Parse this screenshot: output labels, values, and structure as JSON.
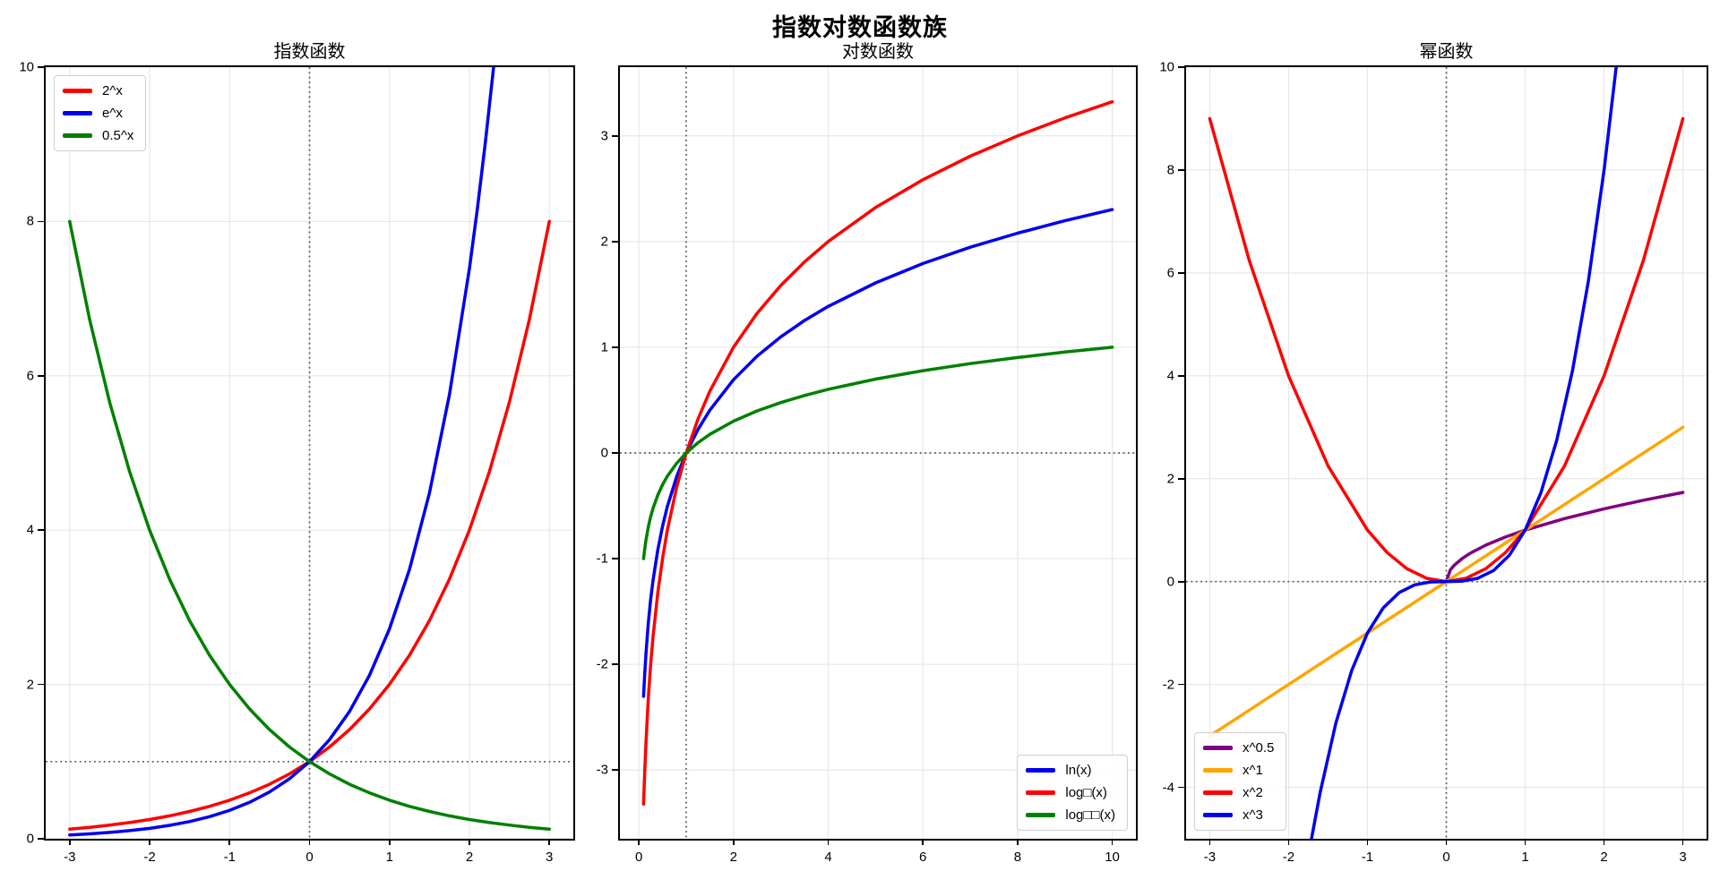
{
  "figure": {
    "title": "指数对数函数族",
    "background": "#ffffff"
  },
  "colors": {
    "red": "#ff0000",
    "blue": "#0000f0",
    "green": "#008000",
    "purple": "#800080",
    "orange": "#ffa500",
    "grid": "#e7e7e7",
    "spine": "#000000",
    "reference_line": "#555555",
    "legend_border": "#cfcfcf"
  },
  "chart_data": [
    {
      "id": "exp",
      "type": "line",
      "title": "指数函数",
      "xlim": [
        -3.3,
        3.3
      ],
      "ylim": [
        0,
        10
      ],
      "xticks": [
        -3,
        -2,
        -1,
        0,
        1,
        2,
        3
      ],
      "yticks": [
        0,
        2,
        4,
        6,
        8,
        10
      ],
      "grid": true,
      "ref_lines": {
        "vline_x": 0,
        "hline_y": 1
      },
      "legend": {
        "position": "upper-left"
      },
      "series": [
        {
          "name": "2^x",
          "color": "#ff0000",
          "points": [
            [
              -3,
              0.125
            ],
            [
              -2.75,
              0.149
            ],
            [
              -2.5,
              0.177
            ],
            [
              -2.25,
              0.21
            ],
            [
              -2,
              0.25
            ],
            [
              -1.75,
              0.297
            ],
            [
              -1.5,
              0.354
            ],
            [
              -1.25,
              0.42
            ],
            [
              -1,
              0.5
            ],
            [
              -0.75,
              0.595
            ],
            [
              -0.5,
              0.707
            ],
            [
              -0.25,
              0.841
            ],
            [
              0,
              1
            ],
            [
              0.25,
              1.189
            ],
            [
              0.5,
              1.414
            ],
            [
              0.75,
              1.682
            ],
            [
              1,
              2
            ],
            [
              1.25,
              2.378
            ],
            [
              1.5,
              2.828
            ],
            [
              1.75,
              3.364
            ],
            [
              2,
              4
            ],
            [
              2.25,
              4.757
            ],
            [
              2.5,
              5.657
            ],
            [
              2.75,
              6.727
            ],
            [
              3,
              8
            ]
          ]
        },
        {
          "name": "e^x",
          "color": "#0000f0",
          "points": [
            [
              -3,
              0.05
            ],
            [
              -2.75,
              0.064
            ],
            [
              -2.5,
              0.082
            ],
            [
              -2.25,
              0.105
            ],
            [
              -2,
              0.135
            ],
            [
              -1.75,
              0.174
            ],
            [
              -1.5,
              0.223
            ],
            [
              -1.25,
              0.287
            ],
            [
              -1,
              0.368
            ],
            [
              -0.75,
              0.472
            ],
            [
              -0.5,
              0.607
            ],
            [
              -0.25,
              0.779
            ],
            [
              0,
              1
            ],
            [
              0.25,
              1.284
            ],
            [
              0.5,
              1.649
            ],
            [
              0.75,
              2.117
            ],
            [
              1,
              2.718
            ],
            [
              1.25,
              3.49
            ],
            [
              1.5,
              4.482
            ],
            [
              1.75,
              5.755
            ],
            [
              2,
              7.389
            ],
            [
              2.1,
              8.166
            ],
            [
              2.2,
              9.025
            ],
            [
              2.303,
              10
            ]
          ]
        },
        {
          "name": "0.5^x",
          "color": "#008000",
          "points": [
            [
              -3,
              8
            ],
            [
              -2.75,
              6.727
            ],
            [
              -2.5,
              5.657
            ],
            [
              -2.25,
              4.757
            ],
            [
              -2,
              4
            ],
            [
              -1.75,
              3.364
            ],
            [
              -1.5,
              2.828
            ],
            [
              -1.25,
              2.378
            ],
            [
              -1,
              2
            ],
            [
              -0.75,
              1.682
            ],
            [
              -0.5,
              1.414
            ],
            [
              -0.25,
              1.189
            ],
            [
              0,
              1
            ],
            [
              0.25,
              0.841
            ],
            [
              0.5,
              0.707
            ],
            [
              0.75,
              0.595
            ],
            [
              1,
              0.5
            ],
            [
              1.25,
              0.42
            ],
            [
              1.5,
              0.354
            ],
            [
              1.75,
              0.297
            ],
            [
              2,
              0.25
            ],
            [
              2.25,
              0.21
            ],
            [
              2.5,
              0.177
            ],
            [
              2.75,
              0.149
            ],
            [
              3,
              0.125
            ]
          ]
        }
      ]
    },
    {
      "id": "log",
      "type": "line",
      "title": "对数函数",
      "xlim": [
        -0.4,
        10.5
      ],
      "ylim": [
        -3.65,
        3.65
      ],
      "xticks": [
        0,
        2,
        4,
        6,
        8,
        10
      ],
      "yticks": [
        -3,
        -2,
        -1,
        0,
        1,
        2,
        3
      ],
      "grid": true,
      "ref_lines": {
        "vline_x": 1,
        "hline_y": 0
      },
      "legend": {
        "position": "lower-right"
      },
      "series": [
        {
          "name": "ln(x)",
          "color": "#0000f0",
          "points": [
            [
              0.1,
              -2.303
            ],
            [
              0.12,
              -2.12
            ],
            [
              0.15,
              -1.897
            ],
            [
              0.2,
              -1.609
            ],
            [
              0.25,
              -1.386
            ],
            [
              0.3,
              -1.204
            ],
            [
              0.4,
              -0.916
            ],
            [
              0.5,
              -0.693
            ],
            [
              0.6,
              -0.511
            ],
            [
              0.8,
              -0.223
            ],
            [
              1,
              0
            ],
            [
              1.25,
              0.223
            ],
            [
              1.5,
              0.405
            ],
            [
              2,
              0.693
            ],
            [
              2.5,
              0.916
            ],
            [
              3,
              1.099
            ],
            [
              3.5,
              1.253
            ],
            [
              4,
              1.386
            ],
            [
              5,
              1.609
            ],
            [
              6,
              1.792
            ],
            [
              7,
              1.946
            ],
            [
              8,
              2.079
            ],
            [
              9,
              2.197
            ],
            [
              10,
              2.303
            ]
          ]
        },
        {
          "name": "log□(x)",
          "color": "#ff0000",
          "points": [
            [
              0.1,
              -3.322
            ],
            [
              0.12,
              -3.059
            ],
            [
              0.15,
              -2.737
            ],
            [
              0.2,
              -2.322
            ],
            [
              0.25,
              -2
            ],
            [
              0.3,
              -1.737
            ],
            [
              0.4,
              -1.322
            ],
            [
              0.5,
              -1
            ],
            [
              0.6,
              -0.737
            ],
            [
              0.8,
              -0.322
            ],
            [
              1,
              0
            ],
            [
              1.25,
              0.322
            ],
            [
              1.5,
              0.585
            ],
            [
              2,
              1
            ],
            [
              2.5,
              1.322
            ],
            [
              3,
              1.585
            ],
            [
              3.5,
              1.807
            ],
            [
              4,
              2
            ],
            [
              5,
              2.322
            ],
            [
              6,
              2.585
            ],
            [
              7,
              2.807
            ],
            [
              8,
              3
            ],
            [
              9,
              3.17
            ],
            [
              10,
              3.322
            ]
          ]
        },
        {
          "name": "log□□(x)",
          "color": "#008000",
          "points": [
            [
              0.1,
              -1
            ],
            [
              0.12,
              -0.921
            ],
            [
              0.15,
              -0.824
            ],
            [
              0.2,
              -0.699
            ],
            [
              0.25,
              -0.602
            ],
            [
              0.3,
              -0.523
            ],
            [
              0.4,
              -0.398
            ],
            [
              0.5,
              -0.301
            ],
            [
              0.6,
              -0.222
            ],
            [
              0.8,
              -0.097
            ],
            [
              1,
              0
            ],
            [
              1.25,
              0.097
            ],
            [
              1.5,
              0.176
            ],
            [
              2,
              0.301
            ],
            [
              2.5,
              0.398
            ],
            [
              3,
              0.477
            ],
            [
              3.5,
              0.544
            ],
            [
              4,
              0.602
            ],
            [
              5,
              0.699
            ],
            [
              6,
              0.778
            ],
            [
              7,
              0.845
            ],
            [
              8,
              0.903
            ],
            [
              9,
              0.954
            ],
            [
              10,
              1
            ]
          ]
        }
      ]
    },
    {
      "id": "pow",
      "type": "line",
      "title": "幂函数",
      "xlim": [
        -3.3,
        3.3
      ],
      "ylim": [
        -5,
        10
      ],
      "xticks": [
        -3,
        -2,
        -1,
        0,
        1,
        2,
        3
      ],
      "yticks": [
        -4,
        -2,
        0,
        2,
        4,
        6,
        8,
        10
      ],
      "grid": true,
      "ref_lines": {
        "vline_x": 0,
        "hline_y": 0
      },
      "legend": {
        "position": "lower-left"
      },
      "series": [
        {
          "name": "x^0.5",
          "color": "#800080",
          "points": [
            [
              0,
              0
            ],
            [
              0.05,
              0.224
            ],
            [
              0.1,
              0.316
            ],
            [
              0.2,
              0.447
            ],
            [
              0.3,
              0.548
            ],
            [
              0.5,
              0.707
            ],
            [
              0.75,
              0.866
            ],
            [
              1,
              1
            ],
            [
              1.5,
              1.225
            ],
            [
              2,
              1.414
            ],
            [
              2.5,
              1.581
            ],
            [
              3,
              1.732
            ]
          ]
        },
        {
          "name": "x^1",
          "color": "#ffa500",
          "points": [
            [
              -3,
              -3
            ],
            [
              3,
              3
            ]
          ]
        },
        {
          "name": "x^2",
          "color": "#ff0000",
          "points": [
            [
              -3,
              9
            ],
            [
              -2.5,
              6.25
            ],
            [
              -2,
              4
            ],
            [
              -1.5,
              2.25
            ],
            [
              -1,
              1
            ],
            [
              -0.75,
              0.563
            ],
            [
              -0.5,
              0.25
            ],
            [
              -0.25,
              0.063
            ],
            [
              0,
              0
            ],
            [
              0.25,
              0.063
            ],
            [
              0.5,
              0.25
            ],
            [
              0.75,
              0.563
            ],
            [
              1,
              1
            ],
            [
              1.5,
              2.25
            ],
            [
              2,
              4
            ],
            [
              2.5,
              6.25
            ],
            [
              3,
              9
            ]
          ]
        },
        {
          "name": "x^3",
          "color": "#0000f0",
          "points": [
            [
              -1.71,
              -5
            ],
            [
              -1.6,
              -4.096
            ],
            [
              -1.4,
              -2.744
            ],
            [
              -1.2,
              -1.728
            ],
            [
              -1,
              -1
            ],
            [
              -0.8,
              -0.512
            ],
            [
              -0.6,
              -0.216
            ],
            [
              -0.4,
              -0.064
            ],
            [
              -0.2,
              -0.008
            ],
            [
              0,
              0
            ],
            [
              0.2,
              0.008
            ],
            [
              0.4,
              0.064
            ],
            [
              0.6,
              0.216
            ],
            [
              0.8,
              0.512
            ],
            [
              1,
              1
            ],
            [
              1.2,
              1.728
            ],
            [
              1.4,
              2.744
            ],
            [
              1.6,
              4.096
            ],
            [
              1.8,
              5.832
            ],
            [
              2,
              8
            ],
            [
              2.154,
              10
            ]
          ]
        }
      ]
    }
  ]
}
